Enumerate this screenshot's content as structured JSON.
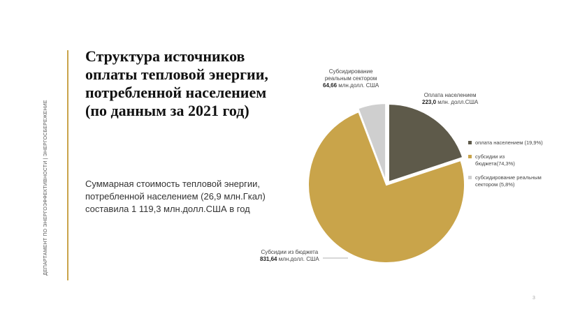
{
  "sidebar": {
    "department": "ДЕПАРТАМЕНТ ПО ЭНЕРГОЭФФЕКТИВНОСТИ | ЭНЕРГОСБЕРЕЖЕНИЕ"
  },
  "title_lines": [
    "Структура источников",
    "оплаты тепловой энергии,",
    "потребленной  населением",
    "(по данным за 2021 год)"
  ],
  "summary_lines": [
    "Суммарная стоимость тепловой энергии,",
    "потребленной населением (26,9 млн.Гкал)",
    "составила 1 119,3 млн.долл.США в год"
  ],
  "labels": {
    "population": {
      "title": "Оплата населением",
      "value": "223,0",
      "unit": " млн. долл.США"
    },
    "real_sector": {
      "title_l1": "Субсидирование",
      "title_l2": "реальным сектором",
      "value": "64,66",
      "unit": " млн.долл. США"
    },
    "budget": {
      "title": "Субсидии из бюджета",
      "value": "831,64",
      "unit": " млн.долл. США"
    }
  },
  "legend": [
    {
      "text": "оплата населением (19,9%)",
      "color": "#5e5a4a"
    },
    {
      "text": "субсидии из бюджета(74,3%)",
      "color": "#c9a44a"
    },
    {
      "text": "субсидирование реальным сектором (5,8%)",
      "color": "#cfcfcf"
    }
  ],
  "page_number": "3",
  "chart_data": {
    "type": "pie",
    "unit": "млн.долл.США",
    "slices": [
      {
        "name": "оплата населением",
        "value": 223.0,
        "percent": 19.9,
        "color": "#5e5a4a",
        "exploded": true
      },
      {
        "name": "субсидии из бюджета",
        "value": 831.64,
        "percent": 74.3,
        "color": "#c9a44a",
        "exploded": false
      },
      {
        "name": "субсидирование реальным сектором",
        "value": 64.66,
        "percent": 5.8,
        "color": "#cfcfcf",
        "exploded": true
      }
    ],
    "legend_position": "right"
  }
}
